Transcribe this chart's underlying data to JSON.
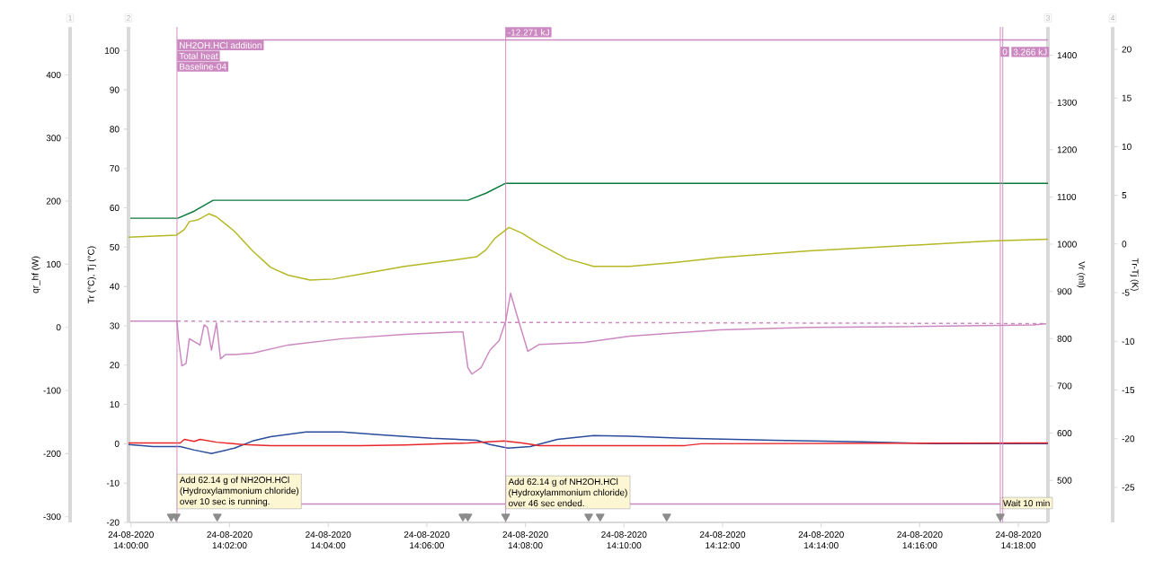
{
  "chart_data": [
    {
      "type": "line",
      "ylabel": "Tr (°C), Tj (°C)",
      "y2label": "qr_hf (W)",
      "y3label": "Vr (ml)",
      "xlim": [
        "2020-08-24T13:59:57",
        "2020-08-24T14:18:36"
      ],
      "xticks": [
        {
          "value": "2020-08-24T14:00",
          "label": "24-08-2020 14:00:00"
        },
        {
          "value": "2020-08-24T14:02",
          "label": "24-08-2020 14:02:00"
        },
        {
          "value": "2020-08-24T14:04",
          "label": "24-08-2020 14:04:00"
        },
        {
          "value": "2020-08-24T14:06",
          "label": "24-08-2020 14:06:00"
        },
        {
          "value": "2020-08-24T14:08",
          "label": "24-08-2020 14:08:00"
        },
        {
          "value": "2020-08-24T14:10",
          "label": "24-08-2020 14:10:00"
        },
        {
          "value": "2020-08-24T14:12",
          "label": "24-08-2020 14:12:00"
        },
        {
          "value": "2020-08-24T14:14",
          "label": "24-08-2020 14:14:00"
        },
        {
          "value": "2020-08-24T14:16",
          "label": "24-08-2020 14:16:00"
        },
        {
          "value": "2020-08-24T14:18",
          "label": "24-08-2020 14:18:00"
        }
      ],
      "ylim": [
        -20,
        106
      ],
      "yticks": [
        -20,
        -10,
        0,
        10,
        20,
        30,
        40,
        50,
        60,
        70,
        80,
        90,
        100
      ],
      "y2lim": [
        -309,
        476
      ],
      "y2ticks": [
        -300,
        -200,
        -100,
        0,
        100,
        200,
        300,
        400
      ],
      "y3lim": [
        411,
        1460
      ],
      "y3ticks": [
        500,
        600,
        700,
        800,
        900,
        1000,
        1100,
        1200,
        1300,
        1400
      ],
      "series": [
        {
          "axis": "y3",
          "color": "#0a7a3c",
          "x": [
            "2020-08-24T13:59:57",
            "2020-08-24T14:00:57",
            "2020-08-24T14:01:17",
            "2020-08-24T14:01:40",
            "2020-08-24T14:06:50",
            "2020-08-24T14:07:12",
            "2020-08-24T14:07:36",
            "2020-08-24T14:18:36"
          ],
          "values": [
            1055,
            1055,
            1070,
            1093,
            1093,
            1108,
            1129,
            1129
          ]
        },
        {
          "axis": "y2",
          "color": "#cc88c0",
          "x": [
            "2020-08-24T13:59:57",
            "2020-08-24T14:00:56",
            "2020-08-24T14:00:58",
            "2020-08-24T14:01:02",
            "2020-08-24T14:01:07",
            "2020-08-24T14:01:11",
            "2020-08-24T14:01:19",
            "2020-08-24T14:01:24",
            "2020-08-24T14:01:29",
            "2020-08-24T14:01:33",
            "2020-08-24T14:01:38",
            "2020-08-24T14:01:44",
            "2020-08-24T14:01:49",
            "2020-08-24T14:01:55",
            "2020-08-24T14:02:06",
            "2020-08-24T14:02:28",
            "2020-08-24T14:03:11",
            "2020-08-24T14:04:17",
            "2020-08-24T14:05:33",
            "2020-08-24T14:06:44",
            "2020-08-24T14:06:50",
            "2020-08-24T14:06:55",
            "2020-08-24T14:07:06",
            "2020-08-24T14:07:17",
            "2020-08-24T14:07:28",
            "2020-08-24T14:07:36",
            "2020-08-24T14:07:42",
            "2020-08-24T14:07:50",
            "2020-08-24T14:08:03",
            "2020-08-24T14:08:17",
            "2020-08-24T14:09:12",
            "2020-08-24T14:10:07",
            "2020-08-24T14:11:56",
            "2020-08-24T14:13:45",
            "2020-08-24T14:15:35",
            "2020-08-24T14:18:18",
            "2020-08-24T14:18:36"
          ],
          "values": [
            10,
            10,
            -21,
            -61,
            -57,
            -18,
            -24,
            -28,
            4,
            0,
            -36,
            7,
            -50,
            -43,
            -43,
            -41,
            -28,
            -18,
            -11,
            -7,
            -64,
            -74,
            -64,
            -36,
            -21,
            10,
            54,
            18,
            -38,
            -27,
            -24,
            -14,
            -4,
            0,
            1,
            4,
            6
          ]
        },
        {
          "axis": "y2",
          "color": "#cc88c0",
          "line_style": "dashed",
          "x": [
            "2020-08-24T14:00:56",
            "2020-08-24T14:02:38",
            "2020-08-24T14:06:50",
            "2020-08-24T14:18:36"
          ],
          "values": [
            10,
            9,
            8,
            6
          ]
        },
        {
          "color": "#2b4c9b",
          "x": [
            "2020-08-24T13:59:57",
            "2020-08-24T14:00:27",
            "2020-08-24T14:01:00",
            "2020-08-24T14:01:17",
            "2020-08-24T14:01:38",
            "2020-08-24T14:02:06",
            "2020-08-24T14:02:28",
            "2020-08-24T14:02:50",
            "2020-08-24T14:03:33",
            "2020-08-24T14:04:17",
            "2020-08-24T14:05:01",
            "2020-08-24T14:06:06",
            "2020-08-24T14:07:01",
            "2020-08-24T14:07:17",
            "2020-08-24T14:07:39",
            "2020-08-24T14:08:06",
            "2020-08-24T14:08:39",
            "2020-08-24T14:09:23",
            "2020-08-24T14:10:07",
            "2020-08-24T14:11:12",
            "2020-08-24T14:13:02",
            "2020-08-24T14:14:51",
            "2020-08-24T14:16:18",
            "2020-08-24T14:18:36"
          ],
          "values": [
            -0.2,
            -0.7,
            -0.7,
            -1.6,
            -2.5,
            -1.1,
            0.7,
            1.8,
            3,
            3,
            2.3,
            1.4,
            0.9,
            -0.2,
            -1.1,
            -0.7,
            1.1,
            2.1,
            1.9,
            1.4,
            0.9,
            0.5,
            0,
            0
          ]
        },
        {
          "color": "#e8262a",
          "x": [
            "2020-08-24T13:59:57",
            "2020-08-24T14:01:00",
            "2020-08-24T14:01:05",
            "2020-08-24T14:01:17",
            "2020-08-24T14:01:24",
            "2020-08-24T14:01:44",
            "2020-08-24T14:02:16",
            "2020-08-24T14:02:50",
            "2020-08-24T14:04:39",
            "2020-08-24T14:05:33",
            "2020-08-24T14:06:50",
            "2020-08-24T14:07:34",
            "2020-08-24T14:07:56",
            "2020-08-24T14:08:17",
            "2020-08-24T14:11:12",
            "2020-08-24T14:11:34",
            "2020-08-24T14:18:36"
          ],
          "values": [
            0.2,
            0.2,
            1.1,
            0.6,
            1.1,
            0.4,
            -0.2,
            -0.5,
            -0.5,
            -0.3,
            0.2,
            0.7,
            0.2,
            -0.5,
            -0.5,
            0,
            0.2
          ]
        },
        {
          "color": "#cc88c0",
          "x": [
            "2020-08-24T14:00:56",
            "2020-08-24T14:18:36"
          ],
          "values": [
            102.7,
            102.7
          ]
        },
        {
          "color": "#cc88c0",
          "x": [
            "2020-08-24T14:00:56",
            "2020-08-24T14:17:38"
          ],
          "values": [
            -15.3,
            -15.3
          ]
        },
        {
          "type": "scatter",
          "marker": "triangle",
          "color": "#8c8c8c",
          "x": [
            "2020-08-24T14:00:49",
            "2020-08-24T14:00:55",
            "2020-08-24T14:01:45",
            "2020-08-24T14:06:44",
            "2020-08-24T14:06:50",
            "2020-08-24T14:07:36",
            "2020-08-24T14:09:17",
            "2020-08-24T14:09:31",
            "2020-08-24T14:10:52",
            "2020-08-24T14:17:38"
          ],
          "values": [
            -18.5,
            -18.5,
            -18.5,
            -18.5,
            -18.5,
            -18.5,
            -18.5,
            -18.5,
            -18.5,
            -18.5
          ]
        }
      ],
      "ref_lines": [
        {
          "axis": "x",
          "value": "2020-08-24T14:00:56",
          "color": "#cc88c0",
          "label": "Add 62.14 g of NH2OH.HCl (Hydroxylammonium chloride) over 10 sec is running."
        },
        {
          "axis": "x",
          "value": "2020-08-24T14:07:36",
          "color": "#cc88c0",
          "label": "Add 62.14 g of NH2OH.HCl (Hydroxylammonium chloride) over 46 sec ended."
        },
        {
          "axis": "x",
          "value": "2020-08-24T14:17:38",
          "color": "#cc88c0",
          "label": "Wait 10 min"
        },
        {
          "axis": "x",
          "value": "2020-08-24T14:17:41",
          "color": "#cc88c0"
        }
      ],
      "annotations": [
        {
          "text": "NH2OH.HCl addition",
          "x": "2020-08-24T14:00:56",
          "y": 102.7
        },
        {
          "text": "Total heat",
          "x": "2020-08-24T14:00:56",
          "y": 100.0
        },
        {
          "text": "Baseline-04",
          "x": "2020-08-24T14:00:56",
          "y": 97.3
        },
        {
          "text": "-12.271 kJ",
          "x": "2020-08-24T14:07:36",
          "y": 106
        },
        {
          "text": "0",
          "x": "2020-08-24T14:17:38",
          "y": 101
        },
        "3.266 kJ",
        "1",
        "2",
        "3"
      ]
    },
    {
      "type": "line",
      "tick_labels": "y",
      "ylabel": "Tr-Tj (K)",
      "xlim": [
        "2020-08-24T13:59:57",
        "2020-08-24T14:18:36"
      ],
      "ylim": [
        -28.6,
        22.3
      ],
      "yticks": [
        -25,
        -20,
        -15,
        -10,
        -5,
        0,
        5,
        10,
        15,
        20
      ],
      "series": [
        {
          "color": "#b5b824",
          "x": [
            "2020-08-24T13:59:57",
            "2020-08-24T14:00:55",
            "2020-08-24T14:01:05",
            "2020-08-24T14:01:11",
            "2020-08-24T14:01:22",
            "2020-08-24T14:01:35",
            "2020-08-24T14:01:44",
            "2020-08-24T14:02:06",
            "2020-08-24T14:02:28",
            "2020-08-24T14:02:50",
            "2020-08-24T14:03:11",
            "2020-08-24T14:03:38",
            "2020-08-24T14:04:06",
            "2020-08-24T14:04:39",
            "2020-08-24T14:05:33",
            "2020-08-24T14:06:28",
            "2020-08-24T14:07:01",
            "2020-08-24T14:07:12",
            "2020-08-24T14:07:23",
            "2020-08-24T14:07:40",
            "2020-08-24T14:07:56",
            "2020-08-24T14:08:17",
            "2020-08-24T14:08:50",
            "2020-08-24T14:09:23",
            "2020-08-24T14:10:07",
            "2020-08-24T14:11:01",
            "2020-08-24T14:11:56",
            "2020-08-24T14:13:45",
            "2020-08-24T14:15:35",
            "2020-08-24T14:17:24",
            "2020-08-24T14:18:36"
          ],
          "values": [
            0.7,
            0.9,
            1.5,
            2.3,
            2.5,
            3.1,
            2.8,
            1.3,
            -0.7,
            -2.4,
            -3.2,
            -3.7,
            -3.6,
            -3.1,
            -2.3,
            -1.7,
            -1.3,
            -0.6,
            0.6,
            1.7,
            1.1,
            0,
            -1.5,
            -2.3,
            -2.3,
            -1.9,
            -1.4,
            -0.7,
            -0.2,
            0.3,
            0.5
          ]
        }
      ],
      "annotations": [
        "4"
      ]
    }
  ]
}
